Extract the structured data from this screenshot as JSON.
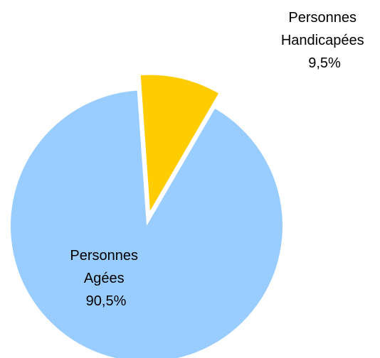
{
  "chart_data": {
    "type": "pie",
    "exploded": true,
    "start_angle_deg": 356,
    "direction": "clockwise",
    "slices": [
      {
        "label": [
          "Personnes",
          "Handicapées",
          "9,5%"
        ],
        "value": 9.5,
        "color": "#FFCC00",
        "exploded": true
      },
      {
        "label": [
          "Personnes",
          "Agées",
          "90,5%"
        ],
        "value": 90.5,
        "color": "#99CCFF",
        "exploded": false
      }
    ]
  }
}
